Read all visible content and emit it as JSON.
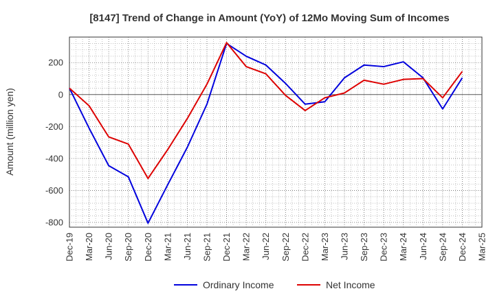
{
  "chart_data": {
    "type": "line",
    "title": "[8147]  Trend of Change in Amount (YoY) of 12Mo Moving Sum of Incomes",
    "ylabel": "Amount (million yen)",
    "xlabel": "",
    "ylim": [
      -830,
      360
    ],
    "yticks": [
      -800,
      -600,
      -400,
      -200,
      0,
      200
    ],
    "grid": true,
    "legend_position": "bottom-center",
    "x": [
      "Dec-19",
      "Mar-20",
      "Jun-20",
      "Sep-20",
      "Dec-20",
      "Mar-21",
      "Jun-21",
      "Sep-21",
      "Dec-21",
      "Mar-22",
      "Jun-22",
      "Sep-22",
      "Dec-22",
      "Mar-23",
      "Jun-23",
      "Sep-23",
      "Dec-23",
      "Mar-24",
      "Jun-24",
      "Sep-24",
      "Dec-24",
      "Mar-25"
    ],
    "series": [
      {
        "name": "Ordinary Income",
        "color": "#0000dd",
        "values": [
          40,
          -210,
          -445,
          -515,
          -805,
          -565,
          -330,
          -60,
          320,
          240,
          185,
          70,
          -60,
          -45,
          105,
          185,
          175,
          205,
          105,
          -90,
          105,
          null
        ]
      },
      {
        "name": "Net Income",
        "color": "#dd0000",
        "values": [
          40,
          -70,
          -265,
          -310,
          -525,
          -345,
          -150,
          65,
          325,
          175,
          130,
          -5,
          -100,
          -20,
          10,
          90,
          65,
          95,
          100,
          -20,
          145,
          null
        ]
      }
    ]
  }
}
